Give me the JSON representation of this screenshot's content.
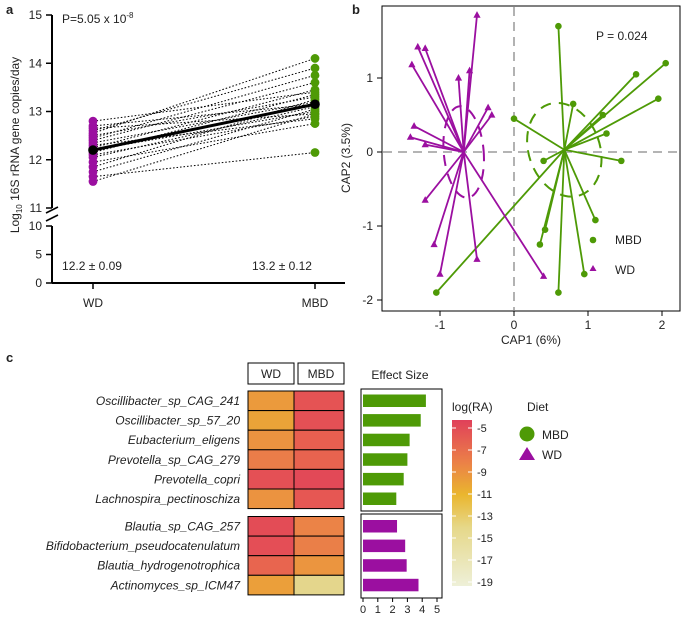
{
  "panel_labels": [
    "a",
    "b",
    "c"
  ],
  "colors": {
    "mbd": "#4e9a06",
    "wd": "#9b0fa0",
    "black": "#000000"
  },
  "chart_data": [
    {
      "type": "scatter",
      "id": "panel-a",
      "ylabel_main": "Log",
      "ylabel_sub": "10",
      "ylabel_rest": " 16S rRNA gene copies/day",
      "pvalue_main": "P=5.05 x 10",
      "pvalue_exp": "-8",
      "categories": [
        "WD",
        "MBD"
      ],
      "yticks_upper": [
        11,
        12,
        13,
        14,
        15
      ],
      "yticks_lower": [
        0,
        5,
        10
      ],
      "ylim_upper": [
        11,
        15
      ],
      "ylim_lower": [
        0,
        10
      ],
      "means": [
        12.2,
        13.15
      ],
      "mean_labels": [
        "12.2 ± 0.09",
        "13.2 ± 0.12"
      ],
      "pairs": [
        [
          11.55,
          12.95
        ],
        [
          11.65,
          12.15
        ],
        [
          11.75,
          13.05
        ],
        [
          11.85,
          13.25
        ],
        [
          11.95,
          12.75
        ],
        [
          12.05,
          13.1
        ],
        [
          12.1,
          12.9
        ],
        [
          12.15,
          13.35
        ],
        [
          12.2,
          13.0
        ],
        [
          12.25,
          13.45
        ],
        [
          12.3,
          12.85
        ],
        [
          12.35,
          13.2
        ],
        [
          12.4,
          13.6
        ],
        [
          12.45,
          13.75
        ],
        [
          12.5,
          13.3
        ],
        [
          12.55,
          14.1
        ],
        [
          12.6,
          13.9
        ],
        [
          12.65,
          12.95
        ],
        [
          12.7,
          13.15
        ],
        [
          12.8,
          13.4
        ]
      ]
    },
    {
      "type": "scatter",
      "id": "panel-b",
      "xlabel": "CAP1 (6%)",
      "ylabel": "CAP2 (3.5%)",
      "pvalue": "P = 0.024",
      "xticks": [
        -1,
        0,
        1,
        2
      ],
      "yticks": [
        -2,
        -1,
        0,
        1
      ],
      "xlim": [
        -1.45,
        2.2
      ],
      "ylim": [
        -2.15,
        2.05
      ],
      "legend": [
        "MBD",
        "WD"
      ],
      "centroids": {
        "MBD": [
          0.68,
          0.03
        ],
        "WD": [
          -0.68,
          0.0
        ]
      },
      "mbd_points": [
        [
          0.6,
          1.7
        ],
        [
          1.65,
          1.05
        ],
        [
          2.05,
          1.2
        ],
        [
          1.95,
          0.72
        ],
        [
          1.2,
          0.5
        ],
        [
          0.8,
          0.65
        ],
        [
          1.25,
          0.25
        ],
        [
          0.0,
          0.45
        ],
        [
          1.45,
          -0.12
        ],
        [
          0.4,
          -0.12
        ],
        [
          1.1,
          -0.92
        ],
        [
          0.42,
          -1.05
        ],
        [
          0.35,
          -1.25
        ],
        [
          0.95,
          -1.65
        ],
        [
          0.6,
          -1.9
        ],
        [
          -1.05,
          -1.9
        ]
      ],
      "wd_points": [
        [
          -0.5,
          1.85
        ],
        [
          -1.3,
          1.42
        ],
        [
          -1.2,
          1.4
        ],
        [
          -1.38,
          1.18
        ],
        [
          -0.6,
          1.1
        ],
        [
          -0.75,
          1.0
        ],
        [
          -0.35,
          0.6
        ],
        [
          -1.35,
          0.35
        ],
        [
          -1.4,
          0.2
        ],
        [
          -1.2,
          0.1
        ],
        [
          -0.3,
          0.5
        ],
        [
          -1.2,
          -0.65
        ],
        [
          -1.08,
          -1.25
        ],
        [
          -1.0,
          -1.65
        ],
        [
          -0.5,
          -1.45
        ],
        [
          0.4,
          -1.68
        ]
      ],
      "ellipse_mbd": {
        "cx": 0.68,
        "cy": 0.03,
        "rx": 0.48,
        "ry": 0.65,
        "rot": -20
      },
      "ellipse_wd": {
        "cx": -0.68,
        "cy": 0.0,
        "rx": 0.27,
        "ry": 0.62,
        "rot": -5
      }
    },
    {
      "type": "heatmap",
      "id": "panel-c",
      "columns": [
        "WD",
        "MBD"
      ],
      "effect_title": "Effect Size",
      "colorbar_title": "log(RA)",
      "colorbar_ticks": [
        "-5",
        "-7",
        "-9",
        "-11",
        "-13",
        "-15",
        "-17",
        "-19"
      ],
      "legend_title": "Diet",
      "legend": [
        "MBD",
        "WD"
      ],
      "effect_xticks": [
        0,
        1,
        2,
        3,
        4,
        5
      ],
      "mbd_rows": [
        {
          "taxon": "Oscillibacter_sp_CAG_241",
          "wd": -9.8,
          "mbd": -6.2,
          "effect": 4.25
        },
        {
          "taxon": "Oscillibacter_sp_57_20",
          "wd": -10.2,
          "mbd": -6.0,
          "effect": 3.9
        },
        {
          "taxon": "Eubacterium_eligens",
          "wd": -9.5,
          "mbd": -7.0,
          "effect": 3.15
        },
        {
          "taxon": "Prevotella_sp_CAG_279",
          "wd": -8.5,
          "mbd": -7.2,
          "effect": 3.0
        },
        {
          "taxon": "Prevotella_copri",
          "wd": -6.0,
          "mbd": -5.6,
          "effect": 2.75
        },
        {
          "taxon": "Lachnospira_pectinoschiza",
          "wd": -9.5,
          "mbd": -6.5,
          "effect": 2.25
        }
      ],
      "wd_rows": [
        {
          "taxon": "Blautia_sp_CAG_257",
          "wd": -5.8,
          "mbd": -8.8,
          "effect": 2.3
        },
        {
          "taxon": "Bifidobacterium_pseudocatenulatum",
          "wd": -5.9,
          "mbd": -8.6,
          "effect": 2.85
        },
        {
          "taxon": "Blautia_hydrogenotrophica",
          "wd": -7.3,
          "mbd": -9.6,
          "effect": 2.95
        },
        {
          "taxon": "Actinomyces_sp_ICM47",
          "wd": -10.0,
          "mbd": -13.0,
          "effect": 3.75
        }
      ]
    }
  ]
}
